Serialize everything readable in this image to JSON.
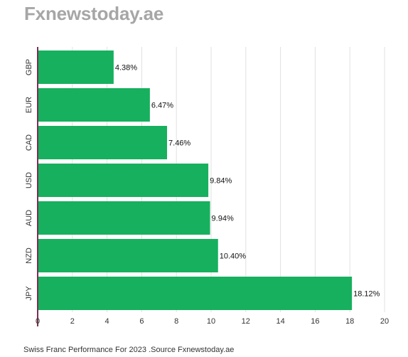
{
  "brand": {
    "title": "Fxnewstoday.ae"
  },
  "footer": {
    "caption": "Swiss Franc Performance For 2023 .Source Fxnewstoday.ae"
  },
  "colors": {
    "bar": "#17b05e",
    "grid": "#e0e0e0",
    "axis": "#7a3050",
    "brand": "#a6a6a6"
  },
  "chart_data": {
    "type": "bar",
    "orientation": "horizontal",
    "categories": [
      "GBP",
      "EUR",
      "CAD",
      "USD",
      "AUD",
      "NZD",
      "JPY"
    ],
    "values": [
      4.38,
      6.47,
      7.46,
      9.84,
      9.94,
      10.4,
      18.12
    ],
    "data_labels": [
      "4.38%",
      "6.47%",
      "7.46%",
      "9.84%",
      "9.94%",
      "10.40%",
      "18.12%"
    ],
    "xlim": [
      0,
      20
    ],
    "xticks": [
      0,
      2,
      4,
      6,
      8,
      10,
      12,
      14,
      16,
      18,
      20
    ],
    "title": "",
    "xlabel": "",
    "ylabel": "",
    "grid": true,
    "legend": "none"
  }
}
